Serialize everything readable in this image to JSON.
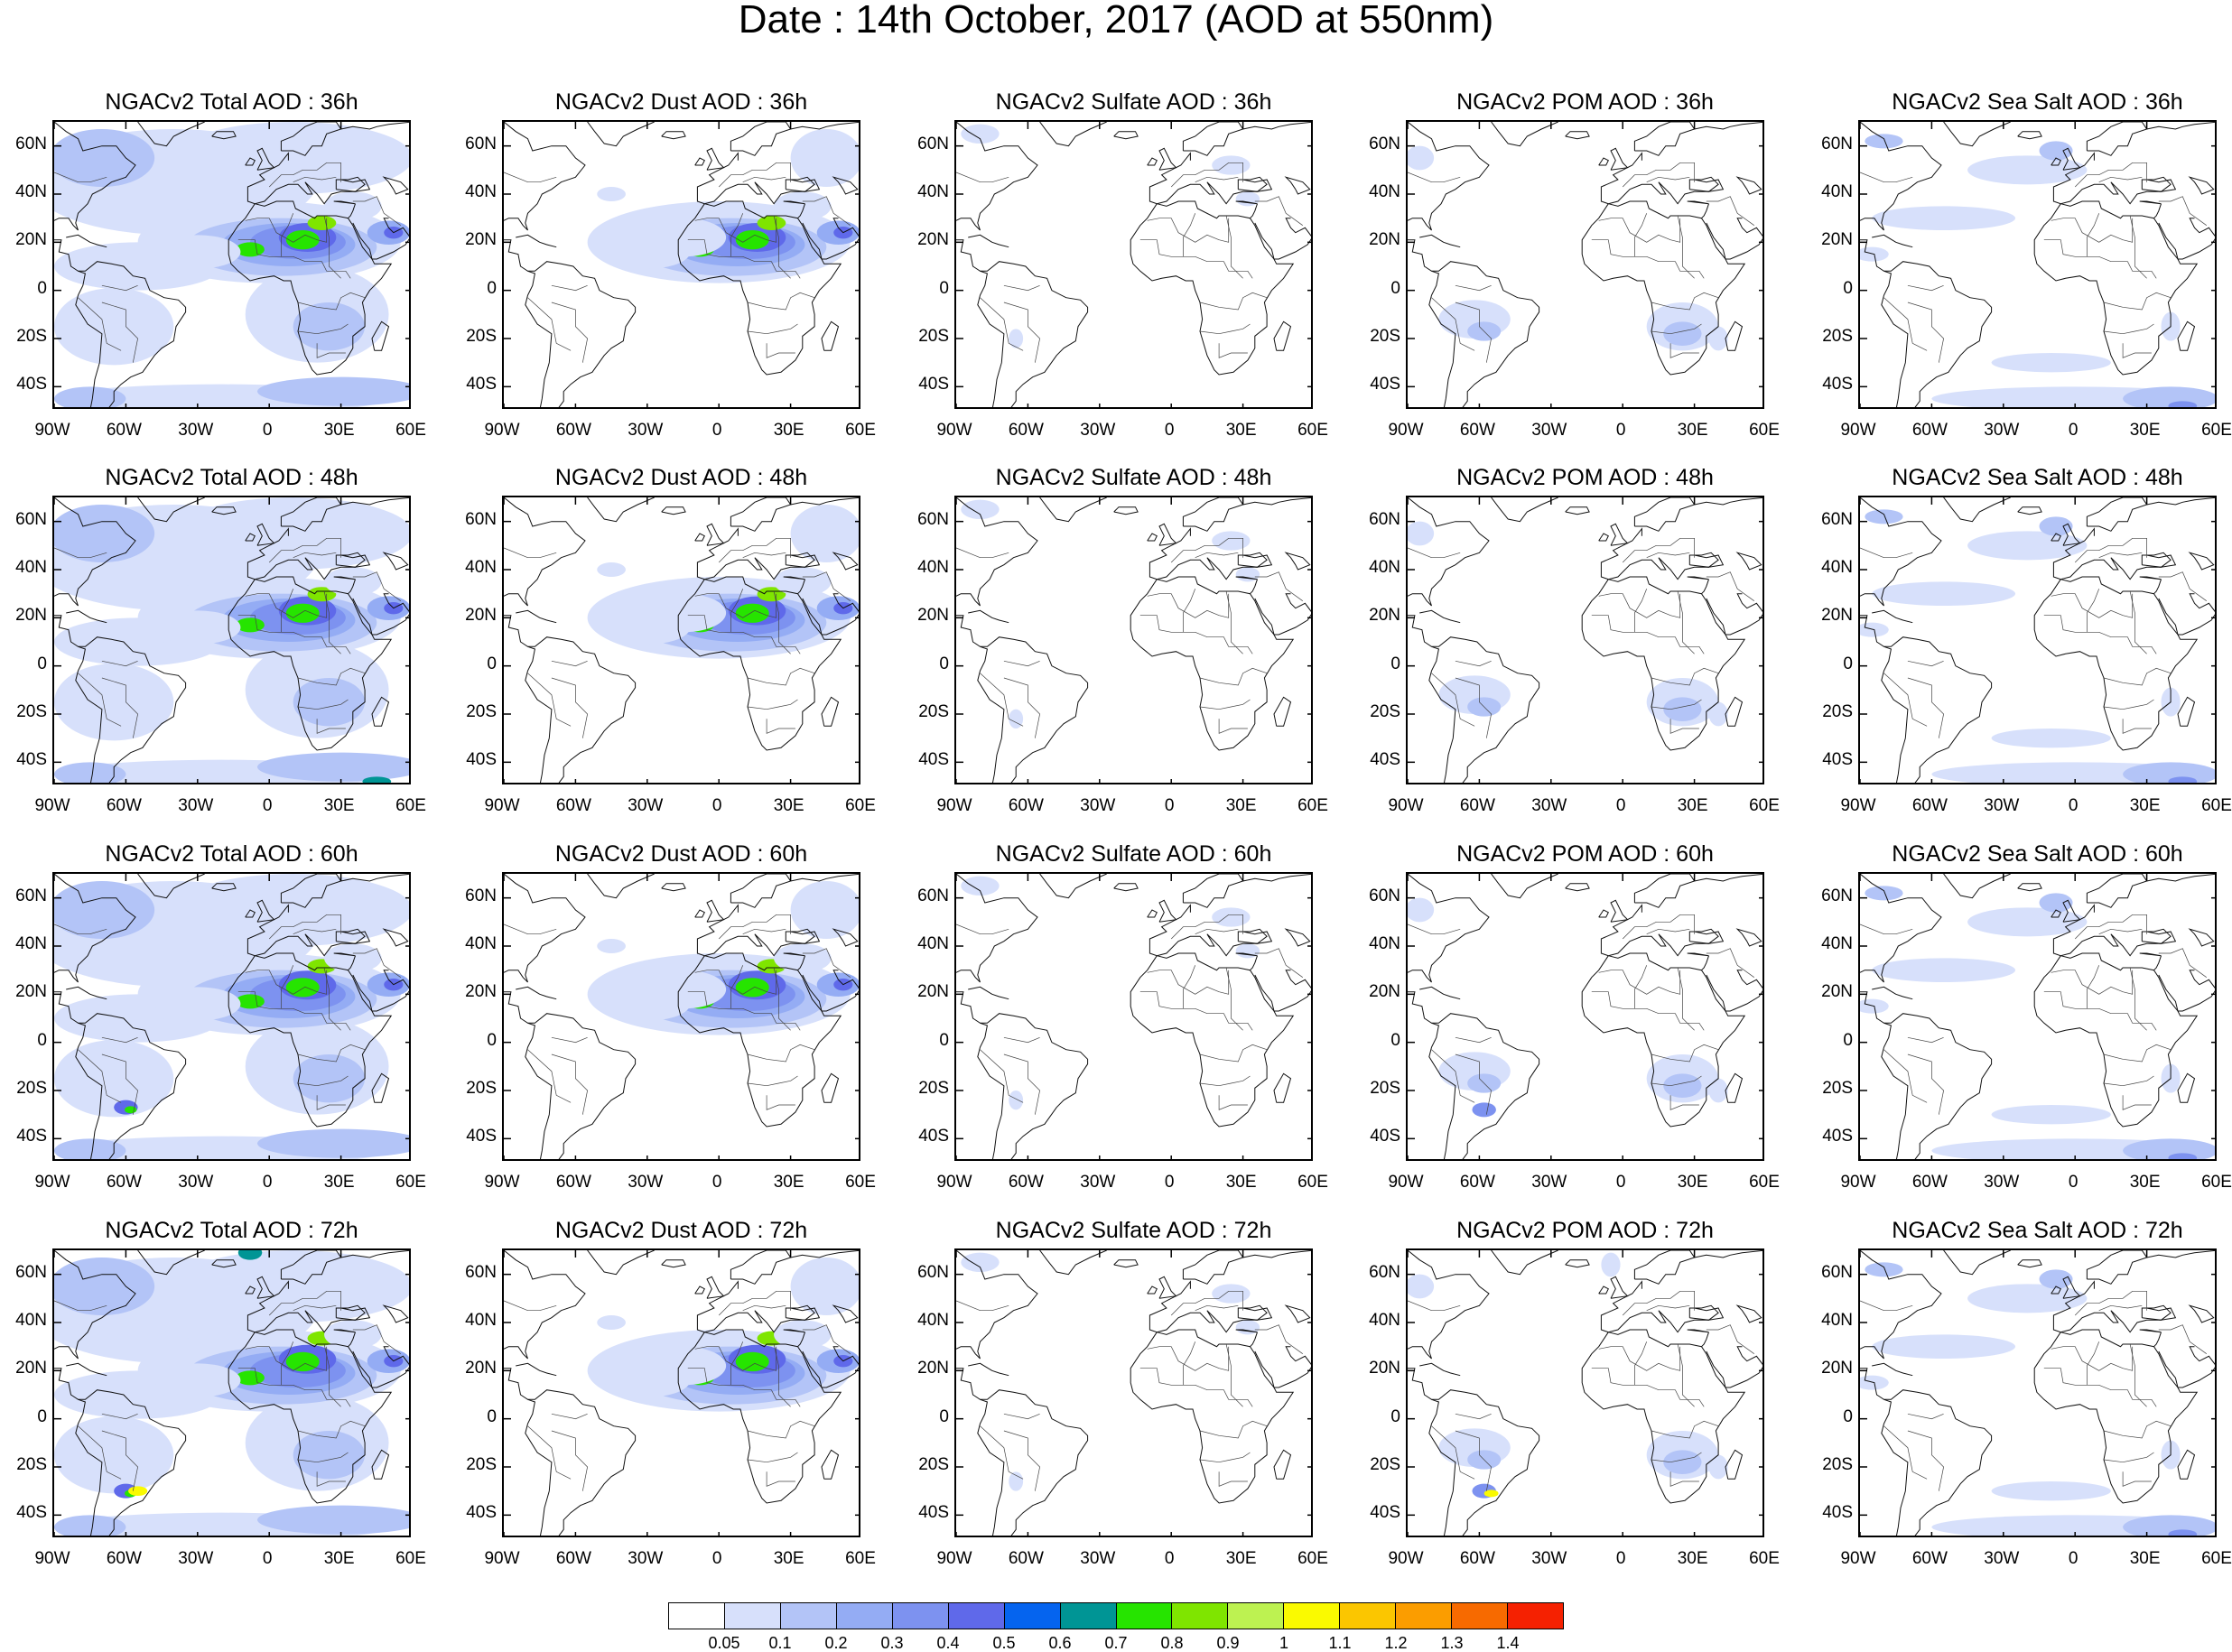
{
  "title": "Date : 14th October, 2017 (AOD at 550nm)",
  "species": [
    {
      "key": "total",
      "titles": [
        "NGACv2 Total AOD : 36h",
        "NGACv2 Total AOD : 48h",
        "NGACv2 Total AOD : 60h",
        "NGACv2 Total AOD : 72h"
      ]
    },
    {
      "key": "dust",
      "titles": [
        "NGACv2 Dust AOD : 36h",
        "NGACv2 Dust AOD : 48h",
        "NGACv2 Dust AOD : 60h",
        "NGACv2 Dust AOD : 72h"
      ]
    },
    {
      "key": "sulfate",
      "titles": [
        "NGACv2 Sulfate AOD : 36h",
        "NGACv2 Sulfate AOD : 48h",
        "NGACv2 Sulfate AOD : 60h",
        "NGACv2 Sulfate AOD : 72h"
      ]
    },
    {
      "key": "pom",
      "titles": [
        "NGACv2 POM AOD : 36h",
        "NGACv2 POM AOD : 48h",
        "NGACv2 POM AOD : 60h",
        "NGACv2 POM AOD : 72h"
      ]
    },
    {
      "key": "seasalt",
      "titles": [
        "NGACv2 Sea Salt AOD : 36h",
        "NGACv2 Sea Salt AOD : 48h",
        "NGACv2 Sea Salt AOD : 60h",
        "NGACv2 Sea Salt  AOD : 72h"
      ]
    }
  ],
  "lat_ticks": [
    "60N",
    "40N",
    "20N",
    "0",
    "20S",
    "40S"
  ],
  "lon_ticks": [
    "90W",
    "60W",
    "30W",
    "0",
    "30E",
    "60E"
  ],
  "colorbar": {
    "labels": [
      "0.05",
      "0.1",
      "0.2",
      "0.3",
      "0.4",
      "0.5",
      "0.6",
      "0.7",
      "0.8",
      "0.9",
      "1",
      "1.1",
      "1.2",
      "1.3",
      "1.4"
    ],
    "colors": [
      "#ffffff",
      "#d7e0fb",
      "#b3c4f7",
      "#94acf4",
      "#7d92f0",
      "#5f69ea",
      "#0564ef",
      "#009595",
      "#26e400",
      "#7fe500",
      "#bdf251",
      "#fafa00",
      "#fbc600",
      "#fb9d00",
      "#f76a00",
      "#f52101"
    ]
  },
  "chart_data": {
    "type": "heatmap",
    "title": "Date : 14th October, 2017 (AOD at 550nm)",
    "x_range": [
      "90W",
      "60E"
    ],
    "y_range": [
      "50S",
      "70N"
    ],
    "forecast_hours": [
      "36h",
      "48h",
      "60h",
      "72h"
    ],
    "variables": [
      "Total AOD",
      "Dust AOD",
      "Sulfate AOD",
      "POM AOD",
      "Sea Salt AOD"
    ],
    "levels": [
      0.05,
      0.1,
      0.2,
      0.3,
      0.4,
      0.5,
      0.6,
      0.7,
      0.8,
      0.9,
      1,
      1.1,
      1.2,
      1.3,
      1.4
    ]
  }
}
